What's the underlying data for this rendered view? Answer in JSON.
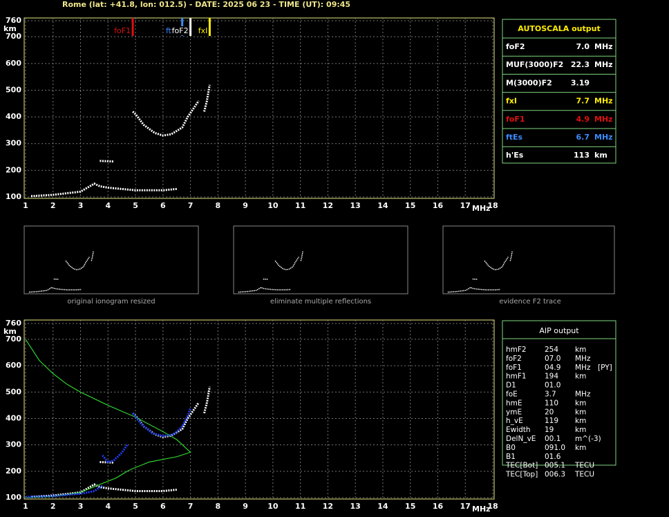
{
  "header": {
    "title": "Rome (lat: +41.8, lon: 012.5) - DATE: 2025 06 23 - TIME (UT): 09:45"
  },
  "chart_data": [
    {
      "type": "ionogram",
      "ylabel": "km",
      "xlabel": "MHz",
      "xlim": [
        1,
        18
      ],
      "xticks": [
        1,
        2,
        3,
        4,
        5,
        6,
        7,
        8,
        9,
        10,
        11,
        12,
        13,
        14,
        15,
        16,
        17,
        18
      ],
      "ylim": [
        100,
        760
      ],
      "yticks": [
        100,
        200,
        300,
        400,
        500,
        600,
        700,
        760
      ],
      "grid": true,
      "series": [
        {
          "color": "#ffffff",
          "x": [
            1.2,
            2,
            3,
            3.5,
            3.7,
            4,
            5,
            6,
            6.5,
            null,
            3.7,
            4.2,
            null,
            4.9,
            5,
            5.3,
            5.7,
            6,
            6.3,
            6.7,
            6.9,
            7.1,
            7.3,
            null,
            7.5,
            7.6,
            7.7
          ],
          "values": [
            103,
            108,
            120,
            150,
            140,
            135,
            125,
            125,
            130,
            null,
            235,
            233,
            null,
            420,
            410,
            370,
            340,
            330,
            335,
            360,
            400,
            430,
            460,
            null,
            420,
            460,
            520
          ]
        }
      ],
      "markers": [
        {
          "label": "foF1",
          "value": 4.9,
          "color": "#e01010"
        },
        {
          "label": "ftEs",
          "value": 6.7,
          "color": "#3c8cff"
        },
        {
          "label": "foF2",
          "value": 7.0,
          "color": "#ffffff"
        },
        {
          "label": "fxI",
          "value": 7.7,
          "color": "#ffee00"
        }
      ]
    },
    {
      "type": "ionogram",
      "ylabel": "km",
      "xlabel": "MHz",
      "xlim": [
        1,
        18
      ],
      "xticks": [
        1,
        2,
        3,
        4,
        5,
        6,
        7,
        8,
        9,
        10,
        11,
        12,
        13,
        14,
        15,
        16,
        17,
        18
      ],
      "ylim": [
        100,
        760
      ],
      "yticks": [
        100,
        200,
        300,
        400,
        500,
        600,
        700,
        760
      ],
      "grid": true,
      "series": [
        {
          "color": "#ffffff",
          "x": [
            1.2,
            2,
            3,
            3.5,
            3.7,
            4,
            5,
            6,
            6.5,
            null,
            3.7,
            4.2,
            null,
            4.9,
            5,
            5.3,
            5.7,
            6,
            6.3,
            6.7,
            6.9,
            7.1,
            7.3,
            null,
            7.5,
            7.6,
            7.7
          ],
          "values": [
            103,
            108,
            120,
            150,
            140,
            135,
            125,
            125,
            130,
            null,
            235,
            233,
            null,
            420,
            410,
            370,
            340,
            330,
            335,
            360,
            400,
            430,
            460,
            null,
            420,
            460,
            520
          ]
        },
        {
          "color": "#30d030",
          "x": [
            1,
            1.5,
            2,
            2.5,
            3,
            4,
            5,
            6,
            6.5,
            7,
            6.5,
            5.5,
            4.9,
            4.7,
            4.3,
            3.7,
            3,
            2,
            1
          ],
          "values": [
            700,
            620,
            570,
            530,
            500,
            450,
            405,
            350,
            320,
            272,
            255,
            235,
            210,
            200,
            175,
            150,
            120,
            105,
            100
          ]
        },
        {
          "color": "#2040ff",
          "x": [
            1,
            2,
            3,
            3.5,
            3.8,
            null,
            3.8,
            4,
            4.2,
            4.5,
            4.7,
            null,
            4.9,
            5.2,
            5.6,
            6,
            6.4,
            6.7,
            6.9,
            7.0
          ],
          "values": [
            103,
            106,
            115,
            125,
            145,
            null,
            260,
            235,
            240,
            270,
            300,
            null,
            420,
            380,
            345,
            333,
            340,
            370,
            410,
            440
          ]
        }
      ]
    }
  ],
  "thumbnails": [
    {
      "caption": "original ionogram resized"
    },
    {
      "caption": "eliminate multiple reflections"
    },
    {
      "caption": "evidence F2 trace"
    }
  ],
  "autoscala": {
    "title": "AUTOSCALA output",
    "rows": [
      {
        "name": "foF2",
        "value": "7.0",
        "unit": "MHz",
        "color": "#ffffff"
      },
      {
        "name": "MUF(3000)F2",
        "value": "22.3",
        "unit": "MHz",
        "color": "#ffffff"
      },
      {
        "name": "M(3000)F2",
        "value": "3.19",
        "color": "#ffffff"
      },
      {
        "name": "fxI",
        "value": "7.7",
        "unit": "MHz",
        "color": "#ffee00"
      },
      {
        "name": "foF1",
        "value": "4.9",
        "unit": "MHz",
        "color": "#e01010"
      },
      {
        "name": "ftEs",
        "value": "6.7",
        "unit": "MHz",
        "color": "#3c8cff"
      },
      {
        "name": "h'Es",
        "value": "113",
        "unit": "km",
        "color": "#ffffff"
      }
    ]
  },
  "aip": {
    "title": "AIP output",
    "rows": [
      {
        "name": "hmF2",
        "value": "254",
        "unit": "km"
      },
      {
        "name": "foF2",
        "value": "07.0",
        "unit": "MHz"
      },
      {
        "name": "foF1",
        "value": "04.9",
        "unit": "MHz",
        "note": "[PY]"
      },
      {
        "name": "hmF1",
        "value": "194",
        "unit": "km"
      },
      {
        "name": "D1",
        "value": "01.0"
      },
      {
        "name": "foE",
        "value": "3.7",
        "unit": "MHz"
      },
      {
        "name": "hmE",
        "value": "110",
        "unit": "km"
      },
      {
        "name": "ymE",
        "value": "20",
        "unit": "km"
      },
      {
        "name": "h_vE",
        "value": "119",
        "unit": "km"
      },
      {
        "name": "Ewidth",
        "value": "19",
        "unit": "km"
      },
      {
        "name": "DelN_vE",
        "value": "00.1",
        "unit": "m^(-3)"
      },
      {
        "name": "B0",
        "value": "091.0",
        "unit": "km"
      },
      {
        "name": "B1",
        "value": "01.6"
      },
      {
        "name": "TEC[Bot]",
        "value": "005.1",
        "unit": "TECU"
      },
      {
        "name": "TEC[Top]",
        "value": "006.3",
        "unit": "TECU"
      }
    ]
  }
}
